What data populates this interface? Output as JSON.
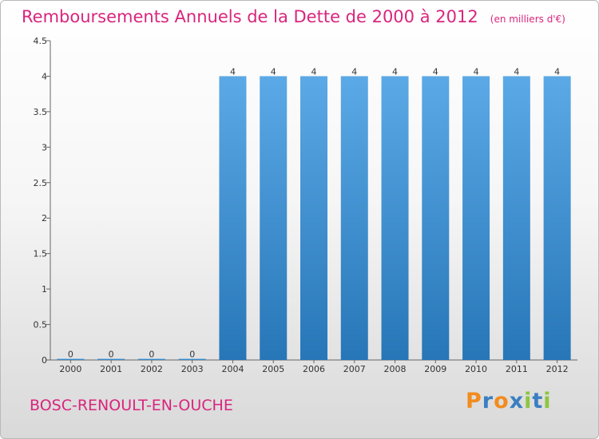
{
  "title": "Remboursements Annuels de la Dette de 2000 à 2012",
  "unit_note": "(en milliers d'€)",
  "commune": "BOSC-RENOULT-EN-OUCHE",
  "logo": {
    "text": "Proxiti",
    "letter_colors": [
      "#f28c1e",
      "#3a7fc1",
      "#f28c1e",
      "#3a7fc1",
      "#8cc63f",
      "#3a7fc1",
      "#8cc63f"
    ]
  },
  "chart_data": {
    "type": "bar",
    "categories": [
      "2000",
      "2001",
      "2002",
      "2003",
      "2004",
      "2005",
      "2006",
      "2007",
      "2008",
      "2009",
      "2010",
      "2011",
      "2012"
    ],
    "values": [
      0,
      0,
      0,
      0,
      4,
      4,
      4,
      4,
      4,
      4,
      4,
      4,
      4
    ],
    "data_labels": [
      "0",
      "0",
      "0",
      "0",
      "4",
      "4",
      "4",
      "4",
      "4",
      "4",
      "4",
      "4",
      "4"
    ],
    "ylim": [
      0,
      4.5
    ],
    "y_ticks": [
      0,
      0.5,
      1,
      1.5,
      2,
      2.5,
      3,
      3.5,
      4,
      4.5
    ],
    "y_tick_labels": [
      "0",
      "0.5",
      "1",
      "1.5",
      "2",
      "2.5",
      "3",
      "3.5",
      "4",
      "4.5"
    ],
    "grid": false,
    "bar_color_top": "#5ba9e6",
    "bar_color_bottom": "#2776b7",
    "title": "Remboursements Annuels de la Dette de 2000 à 2012",
    "xlabel": "",
    "ylabel": ""
  }
}
